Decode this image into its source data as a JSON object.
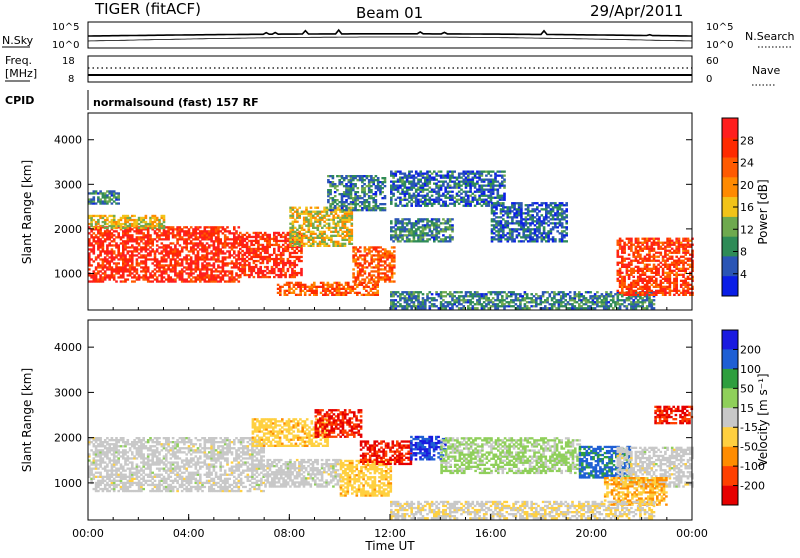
{
  "header": {
    "radar": "TIGER (fitACF)",
    "beam": "Beam 01",
    "date": "29/Apr/2011"
  },
  "top_panels": {
    "nsky_label": "N.Sky",
    "nsky_ticks": [
      "10^5",
      "10^0"
    ],
    "nsearch_label": "N.Search",
    "freq_label_1": "Freq.",
    "freq_label_2": "[MHz]",
    "freq_ticks": [
      "18",
      "8"
    ],
    "nave_ticks": [
      "60",
      "0"
    ],
    "nave_label": "Nave",
    "cpid_label": "CPID",
    "cpid_value": "normalsound (fast) 157 RF"
  },
  "colors": {
    "power": [
      "#0a1ee6",
      "#2a55b5",
      "#2e8b57",
      "#6ea94e",
      "#f2c318",
      "#ff8a00",
      "#ff5a00",
      "#ff2a00",
      "#ff1e1e"
    ],
    "velocity": [
      "#1a1ae0",
      "#1e5fd4",
      "#2e9e3e",
      "#8fcf5a",
      "#c8c8c8",
      "#ffd040",
      "#ff8c00",
      "#ff4000",
      "#e60000"
    ]
  },
  "chart_data": [
    {
      "type": "heatmap",
      "variable": "Power",
      "ylabel": "Slant Range [km]",
      "yticks": [
        "4000",
        "3000",
        "2000",
        "1000"
      ],
      "ylim": [
        180,
        4600
      ],
      "colorbar_label": "Power [dB]",
      "colorbar_ticks": [
        "28",
        "24",
        "20",
        "16",
        "12",
        "8",
        "4"
      ],
      "colorbar_range": [
        0,
        32
      ],
      "regions": [
        {
          "t": [
            0,
            6.0
          ],
          "r": [
            800,
            2050
          ],
          "power_db": 28
        },
        {
          "t": [
            6.0,
            8.5
          ],
          "r": [
            900,
            1900
          ],
          "power_db": 28
        },
        {
          "t": [
            0,
            3.0
          ],
          "r": [
            2000,
            2300
          ],
          "power_db": 16
        },
        {
          "t": [
            0,
            1.2
          ],
          "r": [
            2550,
            2850
          ],
          "power_db": 8
        },
        {
          "t": [
            8.0,
            10.5
          ],
          "r": [
            1600,
            2500
          ],
          "power_db": 16
        },
        {
          "t": [
            9.5,
            11.8
          ],
          "r": [
            2400,
            3200
          ],
          "power_db": 8
        },
        {
          "t": [
            10.5,
            12.2
          ],
          "r": [
            800,
            1600
          ],
          "power_db": 24
        },
        {
          "t": [
            12.0,
            14.5
          ],
          "r": [
            1700,
            2200
          ],
          "power_db": 8
        },
        {
          "t": [
            12.0,
            16.5
          ],
          "r": [
            2500,
            3300
          ],
          "power_db": 6
        },
        {
          "t": [
            16.0,
            19.0
          ],
          "r": [
            1700,
            2600
          ],
          "power_db": 6
        },
        {
          "t": [
            12.0,
            22.5
          ],
          "r": [
            200,
            600
          ],
          "power_db": 8
        },
        {
          "t": [
            21.0,
            24.0
          ],
          "r": [
            500,
            1800
          ],
          "power_db": 26
        },
        {
          "t": [
            7.5,
            11.5
          ],
          "r": [
            500,
            800
          ],
          "power_db": 24
        }
      ]
    },
    {
      "type": "heatmap",
      "variable": "Velocity",
      "xlabel": "Time UT",
      "ylabel": "Slant Range [km]",
      "xticks": [
        "00:00",
        "04:00",
        "08:00",
        "12:00",
        "16:00",
        "20:00",
        "00:00"
      ],
      "xlim": [
        0,
        24
      ],
      "yticks": [
        "4000",
        "3000",
        "2000",
        "1000"
      ],
      "ylim": [
        180,
        4600
      ],
      "colorbar_label": "Velocity [m s⁻¹]",
      "colorbar_ticks": [
        "200",
        "100",
        "50",
        "15",
        "-15",
        "-50",
        "-100",
        "-200"
      ],
      "colorbar_range": [
        -250,
        250
      ],
      "regions": [
        {
          "t": [
            0,
            7.0
          ],
          "r": [
            800,
            2000
          ],
          "velocity": 0
        },
        {
          "t": [
            7.0,
            10.0
          ],
          "r": [
            900,
            1500
          ],
          "velocity": 0
        },
        {
          "t": [
            6.5,
            9.5
          ],
          "r": [
            1800,
            2400
          ],
          "velocity": -60
        },
        {
          "t": [
            9.0,
            10.8
          ],
          "r": [
            2000,
            2600
          ],
          "velocity": -200
        },
        {
          "t": [
            10.0,
            12.0
          ],
          "r": [
            700,
            1500
          ],
          "velocity": -60
        },
        {
          "t": [
            10.8,
            12.8
          ],
          "r": [
            1400,
            1900
          ],
          "velocity": -200
        },
        {
          "t": [
            12.8,
            14.2
          ],
          "r": [
            1500,
            2000
          ],
          "velocity": 200
        },
        {
          "t": [
            14.0,
            19.5
          ],
          "r": [
            1200,
            2000
          ],
          "velocity": 40
        },
        {
          "t": [
            19.5,
            21.5
          ],
          "r": [
            1100,
            1800
          ],
          "velocity": 150
        },
        {
          "t": [
            21.0,
            24.0
          ],
          "r": [
            900,
            1800
          ],
          "velocity": 0
        },
        {
          "t": [
            20.5,
            23.0
          ],
          "r": [
            500,
            1100
          ],
          "velocity": -80
        },
        {
          "t": [
            12.0,
            22.5
          ],
          "r": [
            200,
            600
          ],
          "velocity": -20
        },
        {
          "t": [
            22.5,
            24.0
          ],
          "r": [
            2300,
            2700
          ],
          "velocity": -200
        }
      ]
    }
  ]
}
